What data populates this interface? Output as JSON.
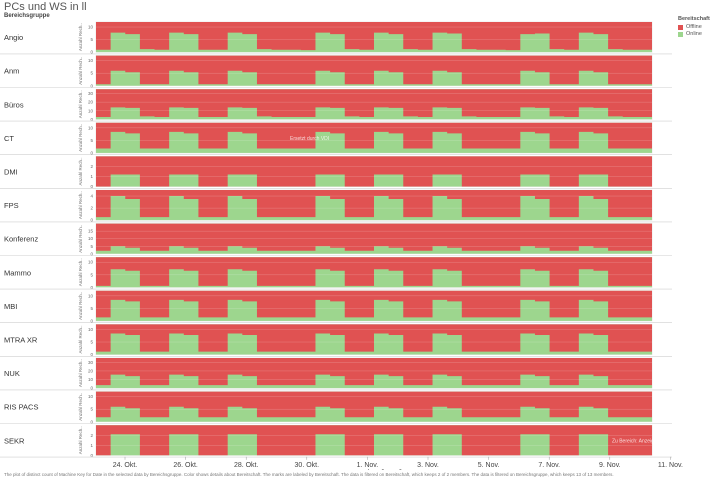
{
  "title": "PCs und WS in ll",
  "group_label": "Bereichsgruppe",
  "legend": {
    "title": "Bereitschaft",
    "items": [
      {
        "label": "Offline",
        "color": "#e05252"
      },
      {
        "label": "Online",
        "color": "#9dd68e"
      }
    ]
  },
  "footnote": "The plot of distinct count of Machine Key for Date in the selected data by Bereichsgruppe. Color shows details about Bereitschaft. The marks are labeled by Bereitschaft. The data is filtered on Bereitschaft, which keeps 2 of 2 members. The data is filtered on Bereichsgruppe, which keeps 13 of 13 members.",
  "annotations": [
    {
      "panel": 3,
      "text": "Ersetzt durch VDI"
    },
    {
      "panel": 12,
      "text": "Zu Bereich: Anzeigen"
    }
  ],
  "chart_data": {
    "type": "area",
    "xlabel": "Date Time [2022]",
    "ylabel": "Anzahl Rech..",
    "x_ticks": [
      "24. Okt.",
      "26. Okt.",
      "28. Okt.",
      "30. Okt.",
      "1. Nov.",
      "3. Nov.",
      "5. Nov.",
      "7. Nov.",
      "9. Nov.",
      "11. Nov."
    ],
    "x_range": [
      "2022-10-23",
      "2022-11-11"
    ],
    "series_colors": {
      "Offline": "#e05252",
      "Online": "#9dd68e"
    },
    "panels": [
      {
        "name": "Angio",
        "ymax": 12,
        "y_ticks": [
          0,
          5,
          10
        ],
        "offline_share": [
          0.92,
          0.35,
          0.4,
          0.9,
          0.92,
          0.35,
          0.4,
          0.92,
          0.92,
          0.35,
          0.4,
          0.9,
          0.92,
          0.92,
          0.93,
          0.35,
          0.4,
          0.9,
          0.92,
          0.35,
          0.4,
          0.9,
          0.92,
          0.35,
          0.38,
          0.9,
          0.92,
          0.92,
          0.93,
          0.4,
          0.38,
          0.9,
          0.92,
          0.35,
          0.4,
          0.9,
          0.92,
          0.92
        ]
      },
      {
        "name": "Anm",
        "ymax": 12,
        "y_ticks": [
          0,
          5,
          10
        ],
        "offline_share": [
          0.95,
          0.5,
          0.55,
          0.95,
          0.95,
          0.5,
          0.55,
          0.95,
          0.95,
          0.5,
          0.55,
          0.95,
          0.95,
          0.95,
          0.95,
          0.5,
          0.55,
          0.95,
          0.95,
          0.5,
          0.55,
          0.95,
          0.95,
          0.5,
          0.55,
          0.95,
          0.95,
          0.95,
          0.95,
          0.5,
          0.55,
          0.95,
          0.95,
          0.5,
          0.55,
          0.95,
          0.95,
          0.95
        ]
      },
      {
        "name": "Büros",
        "ymax": 35,
        "y_ticks": [
          0,
          10,
          20,
          30
        ],
        "offline_share": [
          0.92,
          0.6,
          0.62,
          0.9,
          0.92,
          0.6,
          0.62,
          0.92,
          0.92,
          0.6,
          0.62,
          0.9,
          0.92,
          0.92,
          0.92,
          0.6,
          0.62,
          0.9,
          0.92,
          0.6,
          0.62,
          0.9,
          0.92,
          0.6,
          0.62,
          0.9,
          0.92,
          0.92,
          0.92,
          0.6,
          0.62,
          0.9,
          0.92,
          0.6,
          0.62,
          0.9,
          0.92,
          0.92
        ]
      },
      {
        "name": "CT",
        "ymax": 12,
        "y_ticks": [
          0,
          5,
          10
        ],
        "offline_share": [
          0.85,
          0.3,
          0.35,
          0.85,
          0.85,
          0.3,
          0.35,
          0.85,
          0.85,
          0.3,
          0.35,
          0.85,
          0.85,
          0.85,
          0.85,
          0.3,
          0.35,
          0.85,
          0.85,
          0.3,
          0.35,
          0.85,
          0.85,
          0.3,
          0.35,
          0.85,
          0.85,
          0.85,
          0.85,
          0.3,
          0.35,
          0.85,
          0.85,
          0.3,
          0.35,
          0.85,
          0.85,
          0.85
        ]
      },
      {
        "name": "DMI",
        "ymax": 3,
        "y_ticks": [
          0,
          1,
          2
        ],
        "offline_share": [
          1,
          0.6,
          0.6,
          1,
          1,
          0.6,
          0.6,
          1,
          1,
          0.6,
          0.6,
          1,
          1,
          1,
          1,
          0.6,
          0.6,
          1,
          1,
          0.6,
          0.6,
          1,
          1,
          0.6,
          0.6,
          1,
          1,
          1,
          1,
          0.6,
          0.6,
          1,
          1,
          0.6,
          0.6,
          1,
          1,
          1
        ]
      },
      {
        "name": "FPS",
        "ymax": 5,
        "y_ticks": [
          0,
          2,
          4
        ],
        "offline_share": [
          0.9,
          0.2,
          0.3,
          0.9,
          0.9,
          0.2,
          0.3,
          0.9,
          0.9,
          0.2,
          0.3,
          0.9,
          0.9,
          0.9,
          0.9,
          0.2,
          0.3,
          0.9,
          0.9,
          0.2,
          0.3,
          0.9,
          0.9,
          0.2,
          0.3,
          0.9,
          0.9,
          0.9,
          0.9,
          0.2,
          0.3,
          0.9,
          0.9,
          0.2,
          0.3,
          0.9,
          0.9,
          0.9
        ]
      },
      {
        "name": "Konferenz",
        "ymax": 20,
        "y_ticks": [
          0,
          5,
          10,
          15
        ],
        "offline_share": [
          0.9,
          0.75,
          0.8,
          0.9,
          0.9,
          0.75,
          0.8,
          0.9,
          0.9,
          0.75,
          0.8,
          0.9,
          0.9,
          0.9,
          0.9,
          0.75,
          0.8,
          0.9,
          0.9,
          0.75,
          0.8,
          0.9,
          0.9,
          0.75,
          0.8,
          0.9,
          0.9,
          0.9,
          0.9,
          0.75,
          0.8,
          0.9,
          0.9,
          0.75,
          0.8,
          0.9,
          0.9,
          0.9
        ]
      },
      {
        "name": "Mammo",
        "ymax": 12,
        "y_ticks": [
          0,
          5,
          10
        ],
        "offline_share": [
          0.95,
          0.4,
          0.45,
          0.95,
          0.95,
          0.4,
          0.45,
          0.95,
          0.95,
          0.4,
          0.45,
          0.95,
          0.95,
          0.95,
          0.95,
          0.4,
          0.45,
          0.95,
          0.95,
          0.4,
          0.45,
          0.95,
          0.95,
          0.4,
          0.45,
          0.95,
          0.95,
          0.95,
          0.95,
          0.4,
          0.45,
          0.95,
          0.95,
          0.4,
          0.45,
          0.95,
          0.95,
          0.95
        ]
      },
      {
        "name": "MBI",
        "ymax": 12,
        "y_ticks": [
          0,
          5,
          10
        ],
        "offline_share": [
          0.88,
          0.3,
          0.35,
          0.88,
          0.88,
          0.3,
          0.35,
          0.88,
          0.88,
          0.3,
          0.35,
          0.88,
          0.88,
          0.88,
          0.88,
          0.3,
          0.35,
          0.88,
          0.88,
          0.3,
          0.35,
          0.88,
          0.88,
          0.3,
          0.35,
          0.88,
          0.88,
          0.88,
          0.88,
          0.3,
          0.35,
          0.88,
          0.88,
          0.3,
          0.35,
          0.88,
          0.88,
          0.88
        ]
      },
      {
        "name": "MTRA XR",
        "ymax": 12,
        "y_ticks": [
          0,
          5,
          10
        ],
        "offline_share": [
          0.9,
          0.3,
          0.35,
          0.9,
          0.9,
          0.3,
          0.35,
          0.9,
          0.9,
          0.3,
          0.35,
          0.9,
          0.9,
          0.9,
          0.9,
          0.3,
          0.35,
          0.9,
          0.9,
          0.3,
          0.35,
          0.9,
          0.9,
          0.3,
          0.35,
          0.9,
          0.9,
          0.9,
          0.9,
          0.3,
          0.35,
          0.9,
          0.9,
          0.3,
          0.35,
          0.9,
          0.9,
          0.9
        ]
      },
      {
        "name": "NUK",
        "ymax": 35,
        "y_ticks": [
          0,
          10,
          20,
          30
        ],
        "offline_share": [
          0.9,
          0.55,
          0.6,
          0.9,
          0.9,
          0.55,
          0.6,
          0.9,
          0.9,
          0.55,
          0.6,
          0.9,
          0.9,
          0.9,
          0.9,
          0.55,
          0.6,
          0.9,
          0.9,
          0.55,
          0.6,
          0.9,
          0.9,
          0.55,
          0.6,
          0.9,
          0.9,
          0.9,
          0.9,
          0.55,
          0.6,
          0.9,
          0.9,
          0.55,
          0.6,
          0.9,
          0.9,
          0.9
        ]
      },
      {
        "name": "RIS PACS",
        "ymax": 12,
        "y_ticks": [
          0,
          5,
          10
        ],
        "offline_share": [
          0.85,
          0.5,
          0.55,
          0.85,
          0.85,
          0.5,
          0.55,
          0.85,
          0.85,
          0.5,
          0.55,
          0.85,
          0.85,
          0.85,
          0.85,
          0.5,
          0.55,
          0.85,
          0.85,
          0.5,
          0.55,
          0.85,
          0.85,
          0.5,
          0.55,
          0.85,
          0.85,
          0.85,
          0.85,
          0.5,
          0.55,
          0.85,
          0.85,
          0.5,
          0.55,
          0.85,
          0.85,
          0.85
        ]
      },
      {
        "name": "SEKR",
        "ymax": 3,
        "y_ticks": [
          0,
          1,
          2
        ],
        "offline_share": [
          1,
          0.3,
          0.3,
          1,
          1,
          0.3,
          0.3,
          1,
          1,
          0.3,
          0.3,
          1,
          1,
          1,
          1,
          0.3,
          0.3,
          1,
          1,
          0.3,
          0.3,
          1,
          1,
          0.3,
          0.3,
          1,
          1,
          1,
          1,
          0.3,
          0.3,
          1,
          1,
          0.3,
          0.3,
          1,
          1,
          1
        ]
      }
    ]
  }
}
